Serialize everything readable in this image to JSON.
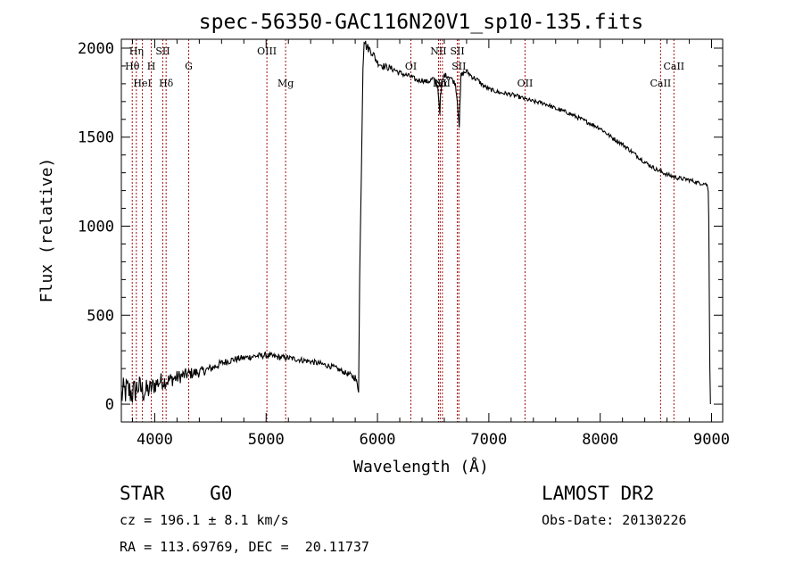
{
  "chart_data": {
    "type": "line",
    "title": "spec-56350-GAC116N20V1_sp10-135.fits",
    "xlabel": "Wavelength (Å)",
    "ylabel": "Flux (relative)",
    "xlim": [
      3700,
      9100
    ],
    "ylim": [
      -100,
      2050
    ],
    "x_ticks": [
      4000,
      5000,
      6000,
      7000,
      8000,
      9000
    ],
    "y_ticks": [
      0,
      500,
      1000,
      1500,
      2000
    ],
    "x_tick_labels": [
      "4000",
      "5000",
      "6000",
      "7000",
      "8000",
      "9000"
    ],
    "y_tick_labels": [
      "0",
      "500",
      "1000",
      "1500",
      "2000"
    ],
    "grid": false,
    "line_color": "#000000",
    "marker_color": "#a01010",
    "series": [
      {
        "x": [
          3700,
          3750,
          3800,
          3850,
          3900,
          3950,
          4000,
          4050,
          4100,
          4200,
          4300,
          4400,
          4500,
          4600,
          4700,
          4800,
          4900,
          5000,
          5100,
          5200,
          5300,
          5400,
          5500,
          5600,
          5700,
          5800,
          5830,
          5840,
          5850,
          5860,
          5870,
          5880,
          5900,
          5950,
          6000,
          6050,
          6100,
          6150,
          6200,
          6250,
          6300,
          6350,
          6400,
          6450,
          6500,
          6540,
          6560,
          6565,
          6580,
          6600,
          6650,
          6700,
          6717,
          6735,
          6750,
          6800,
          6850,
          6900,
          6950,
          7000,
          7100,
          7200,
          7300,
          7400,
          7500,
          7600,
          7700,
          7800,
          7900,
          8000,
          8100,
          8200,
          8300,
          8400,
          8500,
          8600,
          8700,
          8800,
          8900,
          8940,
          8960,
          8970,
          8975,
          8980,
          8985,
          8990
        ],
        "y": [
          50,
          80,
          60,
          100,
          70,
          80,
          110,
          130,
          130,
          150,
          170,
          180,
          200,
          230,
          250,
          260,
          270,
          275,
          265,
          260,
          250,
          240,
          225,
          210,
          180,
          150,
          80,
          700,
          1100,
          1500,
          1900,
          2050,
          2010,
          1980,
          1920,
          1900,
          1890,
          1880,
          1860,
          1850,
          1840,
          1820,
          1820,
          1810,
          1830,
          1790,
          1640,
          1720,
          1800,
          1850,
          1840,
          1800,
          1700,
          1560,
          1850,
          1870,
          1840,
          1820,
          1790,
          1770,
          1750,
          1740,
          1720,
          1700,
          1690,
          1660,
          1640,
          1610,
          1580,
          1550,
          1500,
          1460,
          1410,
          1360,
          1320,
          1290,
          1270,
          1260,
          1240,
          1240,
          1230,
          1200,
          1050,
          600,
          200,
          0
        ],
        "noise": [
          90,
          85,
          80,
          75,
          70,
          60,
          55,
          50,
          45,
          40,
          35,
          30,
          25,
          22,
          20,
          18,
          18,
          18,
          18,
          17,
          16,
          16,
          16,
          15,
          15,
          20,
          20,
          20,
          20,
          20,
          20,
          25,
          25,
          25,
          20,
          20,
          18,
          18,
          18,
          15,
          15,
          15,
          15,
          15,
          15,
          15,
          15,
          15,
          15,
          15,
          15,
          15,
          15,
          15,
          15,
          15,
          15,
          15,
          12,
          12,
          12,
          12,
          12,
          12,
          12,
          12,
          12,
          12,
          12,
          12,
          12,
          12,
          12,
          12,
          12,
          12,
          12,
          12,
          10,
          10,
          10,
          10,
          10,
          10,
          10,
          0
        ]
      }
    ],
    "lines": [
      {
        "label": "Hη",
        "x": 3835,
        "row": 0
      },
      {
        "label": "Hθ",
        "x": 3798,
        "row": 1
      },
      {
        "label": "HeI",
        "x": 3889,
        "row": 2
      },
      {
        "label": "SII",
        "x": 4072,
        "row": 0
      },
      {
        "label": "H",
        "x": 3969,
        "row": 1
      },
      {
        "label": "Hδ",
        "x": 4102,
        "row": 2
      },
      {
        "label": "G",
        "x": 4305,
        "row": 1
      },
      {
        "label": "OIII",
        "x": 5007,
        "row": 0
      },
      {
        "label": "Mg",
        "x": 5175,
        "row": 2
      },
      {
        "label": "OI",
        "x": 6300,
        "row": 1
      },
      {
        "label": "NII",
        "x": 6548,
        "row": 0
      },
      {
        "label": "Hα",
        "x": 6563,
        "row": 2
      },
      {
        "label": "NII",
        "x": 6583,
        "row": 2
      },
      {
        "label": "SII",
        "x": 6717,
        "row": 0
      },
      {
        "label": "SII",
        "x": 6731,
        "row": 1
      },
      {
        "label": "OII",
        "x": 7325,
        "row": 2
      },
      {
        "label": "CaII",
        "x": 8542,
        "row": 2
      },
      {
        "label": "CaII",
        "x": 8662,
        "row": 1
      }
    ]
  },
  "info": {
    "class_text": "STAR    G0",
    "survey_text": "LAMOST DR2",
    "cz_text": "cz = 196.1 ± 8.1 km/s",
    "obs_date_text": "Obs-Date: 20130226",
    "coords_text": "RA = 113.69769, DEC =  20.11737"
  }
}
